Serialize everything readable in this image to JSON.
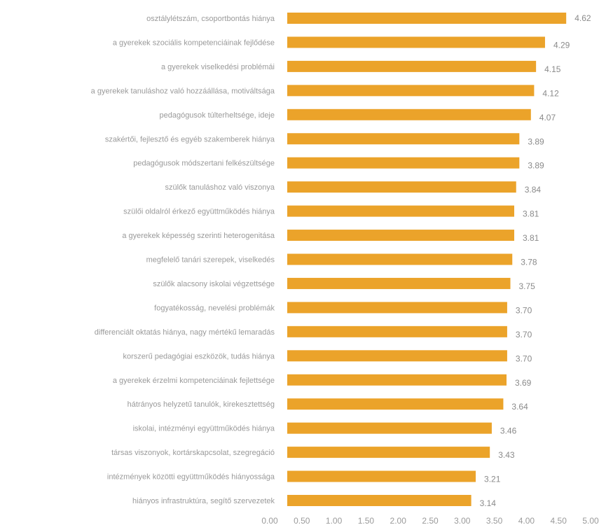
{
  "chart_data": {
    "type": "bar",
    "orientation": "horizontal",
    "title": "",
    "xlabel": "",
    "ylabel": "",
    "xlim": [
      0,
      5.0
    ],
    "grid": false,
    "legend": "none",
    "bar_color": "#eba32a",
    "categories": [
      "osztálylétszám, csoportbontás hiánya",
      "a gyerekek szociális kompetenciáinak fejlődése",
      "a gyerekek viselkedési problémái",
      "a gyerekek tanuláshoz való hozzáállása, motiváltsága",
      "pedagógusok túlterheltsége, ideje",
      "szakértői, fejlesztő és egyéb szakemberek hiánya",
      "pedagógusok módszertani felkészültsége",
      "szülők tanuláshoz való viszonya",
      "szülői oldalról érkező együttműködés hiánya",
      "a gyerekek képesség szerinti heterogenitása",
      "megfelelő tanári szerepek, viselkedés",
      "szülők alacsony iskolai végzettsége",
      "fogyatékosság, nevelési problémák",
      "differenciált oktatás hiánya, nagy mértékű lemaradás",
      "korszerű pedagógiai eszközök, tudás hiánya",
      "a gyerekek érzelmi kompetenciáinak fejlettsége",
      "hátrányos helyzetű tanulók, kirekesztettség",
      "iskolai, intézményi együttműködés hiánya",
      "társas viszonyok, kortárskapcsolat, szegregáció",
      "intézmények közötti együttműködés hiányossága",
      "hiányos infrastruktúra, segítő szervezetek"
    ],
    "values": [
      4.62,
      4.29,
      4.15,
      4.12,
      4.07,
      3.89,
      3.89,
      3.84,
      3.81,
      3.81,
      3.78,
      3.75,
      3.7,
      3.7,
      3.7,
      3.69,
      3.64,
      3.46,
      3.43,
      3.21,
      3.14
    ],
    "value_labels": [
      "4.62",
      "4.29",
      "4.15",
      "4.12",
      "4.07",
      "3.89",
      "3.89",
      "3.84",
      "3.81",
      "3.81",
      "3.78",
      "3.75",
      "3.70",
      "3.70",
      "3.70",
      "3.69",
      "3.64",
      "3.46",
      "3.43",
      "3.21",
      "3.14"
    ],
    "x_ticks": [
      "0.00",
      "0.50",
      "1.00",
      "1.50",
      "2.00",
      "2.50",
      "3.00",
      "3.50",
      "4.00",
      "4.50",
      "5.00"
    ]
  }
}
